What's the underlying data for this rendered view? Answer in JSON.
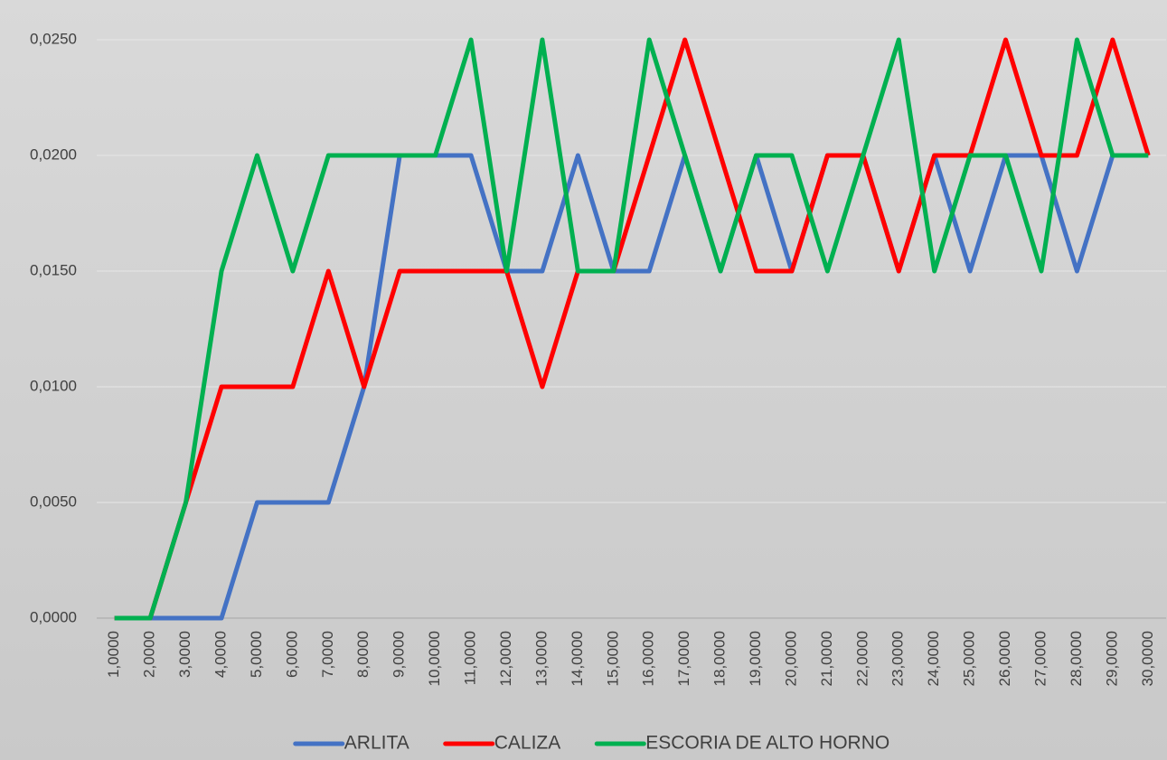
{
  "chart_data": {
    "type": "line",
    "x": [
      1,
      2,
      3,
      4,
      5,
      6,
      7,
      8,
      9,
      10,
      11,
      12,
      13,
      14,
      15,
      16,
      17,
      18,
      19,
      20,
      21,
      22,
      23,
      24,
      25,
      26,
      27,
      28,
      29,
      30
    ],
    "xlim": [
      0.5,
      30.5
    ],
    "xticks": [
      {
        "value": 1,
        "label": "1,0000"
      },
      {
        "value": 2,
        "label": "2,0000"
      },
      {
        "value": 3,
        "label": "3,0000"
      },
      {
        "value": 4,
        "label": "4,0000"
      },
      {
        "value": 5,
        "label": "5,0000"
      },
      {
        "value": 6,
        "label": "6,0000"
      },
      {
        "value": 7,
        "label": "7,0000"
      },
      {
        "value": 8,
        "label": "8,0000"
      },
      {
        "value": 9,
        "label": "9,0000"
      },
      {
        "value": 10,
        "label": "10,0000"
      },
      {
        "value": 11,
        "label": "11,0000"
      },
      {
        "value": 12,
        "label": "12,0000"
      },
      {
        "value": 13,
        "label": "13,0000"
      },
      {
        "value": 14,
        "label": "14,0000"
      },
      {
        "value": 15,
        "label": "15,0000"
      },
      {
        "value": 16,
        "label": "16,0000"
      },
      {
        "value": 17,
        "label": "17,0000"
      },
      {
        "value": 18,
        "label": "18,0000"
      },
      {
        "value": 19,
        "label": "19,0000"
      },
      {
        "value": 20,
        "label": "20,0000"
      },
      {
        "value": 21,
        "label": "21,0000"
      },
      {
        "value": 22,
        "label": "22,0000"
      },
      {
        "value": 23,
        "label": "23,0000"
      },
      {
        "value": 24,
        "label": "24,0000"
      },
      {
        "value": 25,
        "label": "25,0000"
      },
      {
        "value": 26,
        "label": "26,0000"
      },
      {
        "value": 27,
        "label": "27,0000"
      },
      {
        "value": 28,
        "label": "28,0000"
      },
      {
        "value": 29,
        "label": "29,0000"
      },
      {
        "value": 30,
        "label": "30,0000"
      }
    ],
    "ylim": [
      0,
      0.025
    ],
    "yticks": [
      {
        "value": 0,
        "label": "0,0000"
      },
      {
        "value": 0.005,
        "label": "0,0050"
      },
      {
        "value": 0.01,
        "label": "0,0100"
      },
      {
        "value": 0.015,
        "label": "0,0150"
      },
      {
        "value": 0.02,
        "label": "0,0200"
      },
      {
        "value": 0.025,
        "label": "0,0250"
      }
    ],
    "grid": true,
    "legend": "bottom",
    "series": [
      {
        "name": "ARLITA",
        "color": "#4472c4",
        "values": [
          0,
          0,
          0,
          0,
          0.005,
          0.005,
          0.005,
          0.01,
          0.02,
          0.02,
          0.02,
          0.015,
          0.015,
          0.02,
          0.015,
          0.015,
          0.02,
          0.015,
          0.02,
          0.015,
          0.02,
          0.02,
          0.015,
          0.02,
          0.015,
          0.02,
          0.02,
          0.015,
          0.02,
          0.02
        ]
      },
      {
        "name": "CALIZA",
        "color": "#ff0000",
        "values": [
          0,
          0,
          0.005,
          0.01,
          0.01,
          0.01,
          0.015,
          0.01,
          0.015,
          0.015,
          0.015,
          0.015,
          0.01,
          0.015,
          0.015,
          0.02,
          0.025,
          0.02,
          0.015,
          0.015,
          0.02,
          0.02,
          0.015,
          0.02,
          0.02,
          0.025,
          0.02,
          0.02,
          0.025,
          0.02
        ]
      },
      {
        "name": "ESCORIA DE ALTO HORNO",
        "color": "#00b050",
        "values": [
          0,
          0,
          0.005,
          0.015,
          0.02,
          0.015,
          0.02,
          0.02,
          0.02,
          0.02,
          0.025,
          0.015,
          0.025,
          0.015,
          0.015,
          0.025,
          0.02,
          0.015,
          0.02,
          0.02,
          0.015,
          0.02,
          0.025,
          0.015,
          0.02,
          0.02,
          0.015,
          0.025,
          0.02,
          0.02
        ]
      }
    ]
  }
}
